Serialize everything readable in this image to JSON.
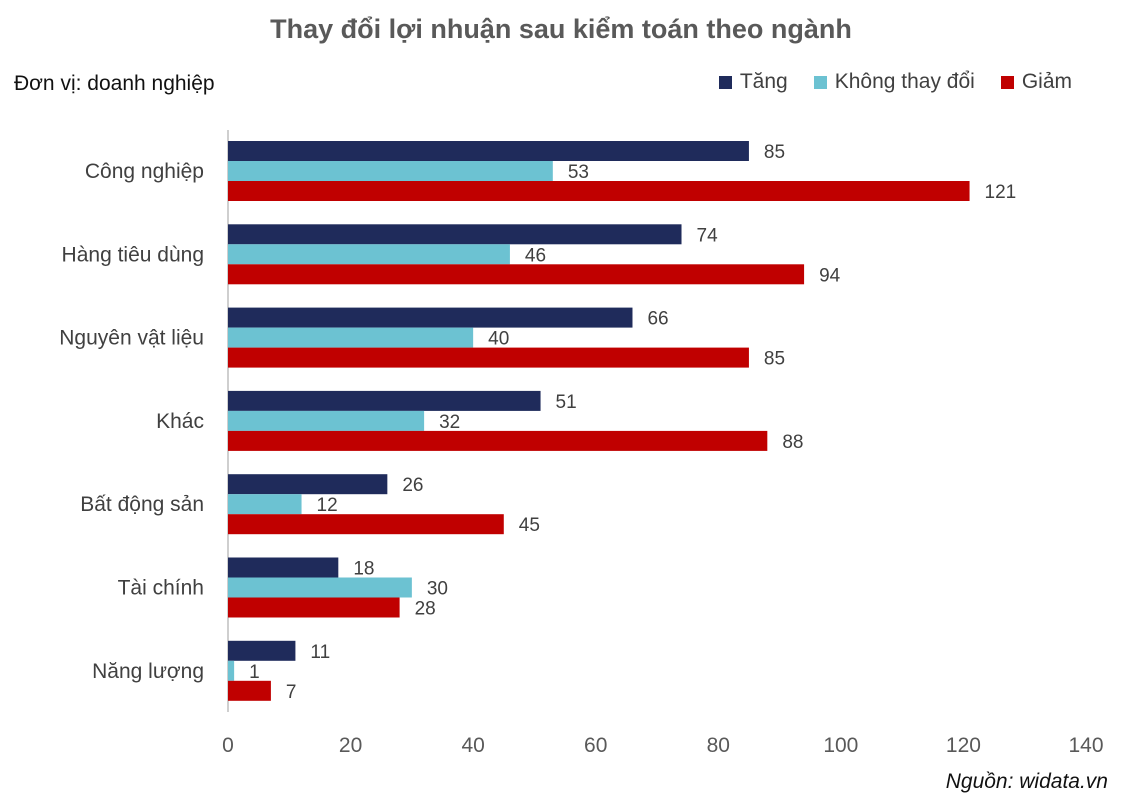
{
  "chart_data": {
    "type": "bar",
    "orientation": "horizontal",
    "title": "Thay đổi lợi nhuận sau kiểm toán theo ngành",
    "unit_label": "Đơn vị: doanh nghiệp",
    "source": "Nguồn: widata.vn",
    "categories": [
      "Công nghiệp",
      "Hàng tiêu dùng",
      "Nguyên vật liệu",
      "Khác",
      "Bất động sản",
      "Tài chính",
      "Năng lượng"
    ],
    "series": [
      {
        "name": "Tăng",
        "color": "#1f2b5b",
        "values": [
          85,
          74,
          66,
          51,
          26,
          18,
          11
        ]
      },
      {
        "name": "Không thay đổi",
        "color": "#6cc2d2",
        "values": [
          53,
          46,
          40,
          32,
          12,
          30,
          1
        ]
      },
      {
        "name": "Giảm",
        "color": "#c00000",
        "values": [
          121,
          94,
          85,
          88,
          45,
          28,
          7
        ]
      }
    ],
    "xlim": [
      0,
      140
    ],
    "xticks": [
      0,
      20,
      40,
      60,
      80,
      100,
      120,
      140
    ],
    "grid": false,
    "legend_position": "top-right"
  }
}
